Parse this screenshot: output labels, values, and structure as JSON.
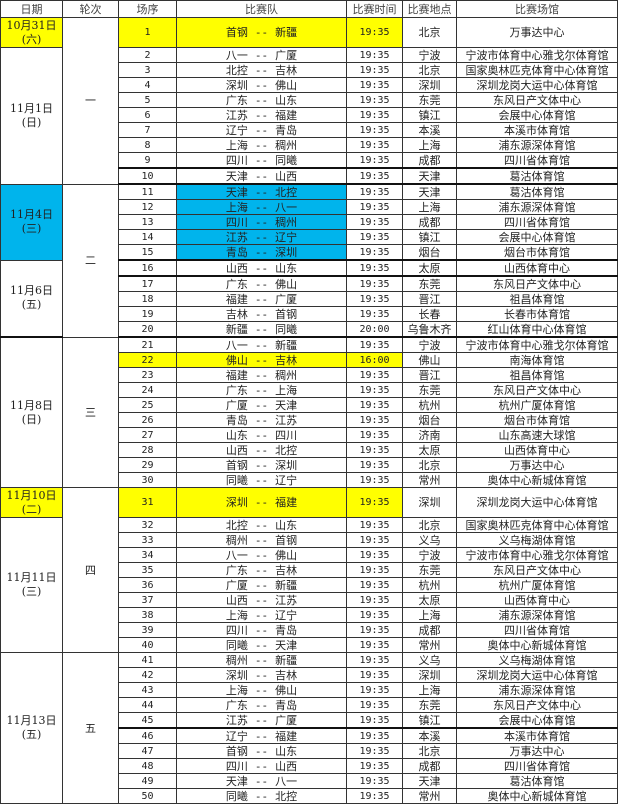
{
  "headers": [
    "日期",
    "轮次",
    "场序",
    "比赛队",
    "比赛时间",
    "比赛地点",
    "比赛场馆"
  ],
  "colors": {
    "yellow": "#ffff00",
    "blue": "#00b4ec"
  },
  "team_separator": "--",
  "date_groups": [
    {
      "date": "10月31日",
      "weekday": "(六)",
      "start": 1,
      "span": 1,
      "highlight": "yellow"
    },
    {
      "date": "11月1日",
      "weekday": "(日)",
      "start": 2,
      "span": 9,
      "highlight": ""
    },
    {
      "date": "11月4日",
      "weekday": "(三)",
      "start": 11,
      "span": 5,
      "highlight": "blue"
    },
    {
      "date": "11月6日",
      "weekday": "(五)",
      "start": 16,
      "span": 5,
      "highlight": ""
    },
    {
      "date": "11月8日",
      "weekday": "(日)",
      "start": 21,
      "span": 10,
      "highlight": ""
    },
    {
      "date": "11月10日",
      "weekday": "(二)",
      "start": 31,
      "span": 1,
      "highlight": "yellow"
    },
    {
      "date": "11月11日",
      "weekday": "(三)",
      "start": 32,
      "span": 9,
      "highlight": ""
    },
    {
      "date": "11月13日",
      "weekday": "(五)",
      "start": 41,
      "span": 10,
      "highlight": ""
    }
  ],
  "round_groups": [
    {
      "round": "一",
      "start": 1,
      "span": 10
    },
    {
      "round": "二",
      "start": 11,
      "span": 10
    },
    {
      "round": "三",
      "start": 21,
      "span": 10
    },
    {
      "round": "四",
      "start": 31,
      "span": 10
    },
    {
      "round": "五",
      "start": 41,
      "span": 10
    }
  ],
  "matches": [
    {
      "seq": "1",
      "home": "首钢",
      "away": "新疆",
      "time": "19:35",
      "city": "北京",
      "venue": "万事达中心",
      "highlight": "yellow"
    },
    {
      "seq": "2",
      "home": "八一",
      "away": "广厦",
      "time": "19:35",
      "city": "宁波",
      "venue": "宁波市体育中心雅戈尔体育馆"
    },
    {
      "seq": "3",
      "home": "北控",
      "away": "吉林",
      "time": "19:35",
      "city": "北京",
      "venue": "国家奥林匹克体育中心体育馆"
    },
    {
      "seq": "4",
      "home": "深圳",
      "away": "佛山",
      "time": "19:35",
      "city": "深圳",
      "venue": "深圳龙岗大运中心体育馆"
    },
    {
      "seq": "5",
      "home": "广东",
      "away": "山东",
      "time": "19:35",
      "city": "东莞",
      "venue": "东风日产文体中心"
    },
    {
      "seq": "6",
      "home": "江苏",
      "away": "福建",
      "time": "19:35",
      "city": "镇江",
      "venue": "会展中心体育馆"
    },
    {
      "seq": "7",
      "home": "辽宁",
      "away": "青岛",
      "time": "19:35",
      "city": "本溪",
      "venue": "本溪市体育馆"
    },
    {
      "seq": "8",
      "home": "上海",
      "away": "稠州",
      "time": "19:35",
      "city": "上海",
      "venue": "浦东源深体育馆"
    },
    {
      "seq": "9",
      "home": "四川",
      "away": "同曦",
      "time": "19:35",
      "city": "成都",
      "venue": "四川省体育馆"
    },
    {
      "seq": "10",
      "home": "天津",
      "away": "山西",
      "time": "19:35",
      "city": "天津",
      "venue": "葛沽体育馆"
    },
    {
      "seq": "11",
      "home": "天津",
      "away": "北控",
      "time": "19:35",
      "city": "天津",
      "venue": "葛沽体育馆",
      "highlight": "blue-teams"
    },
    {
      "seq": "12",
      "home": "上海",
      "away": "八一",
      "time": "19:35",
      "city": "上海",
      "venue": "浦东源深体育馆",
      "highlight": "blue-teams"
    },
    {
      "seq": "13",
      "home": "四川",
      "away": "稠州",
      "time": "19:35",
      "city": "成都",
      "venue": "四川省体育馆",
      "highlight": "blue-teams"
    },
    {
      "seq": "14",
      "home": "江苏",
      "away": "辽宁",
      "time": "19:35",
      "city": "镇江",
      "venue": "会展中心体育馆",
      "highlight": "blue-teams"
    },
    {
      "seq": "15",
      "home": "青岛",
      "away": "深圳",
      "time": "19:35",
      "city": "烟台",
      "venue": "烟台市体育馆",
      "highlight": "blue-teams"
    },
    {
      "seq": "16",
      "home": "山西",
      "away": "山东",
      "time": "19:35",
      "city": "太原",
      "venue": "山西体育中心"
    },
    {
      "seq": "17",
      "home": "广东",
      "away": "佛山",
      "time": "19:35",
      "city": "东莞",
      "venue": "东风日产文体中心"
    },
    {
      "seq": "18",
      "home": "福建",
      "away": "广厦",
      "time": "19:35",
      "city": "晋江",
      "venue": "祖昌体育馆"
    },
    {
      "seq": "19",
      "home": "吉林",
      "away": "首钢",
      "time": "19:35",
      "city": "长春",
      "venue": "长春市体育馆"
    },
    {
      "seq": "20",
      "home": "新疆",
      "away": "同曦",
      "time": "20:00",
      "city": "乌鲁木齐",
      "venue": "红山体育中心体育馆"
    },
    {
      "seq": "21",
      "home": "八一",
      "away": "新疆",
      "time": "19:35",
      "city": "宁波",
      "venue": "宁波市体育中心雅戈尔体育馆"
    },
    {
      "seq": "22",
      "home": "佛山",
      "away": "吉林",
      "time": "16:00",
      "city": "佛山",
      "venue": "南海体育馆",
      "highlight": "yellow"
    },
    {
      "seq": "23",
      "home": "福建",
      "away": "稠州",
      "time": "19:35",
      "city": "晋江",
      "venue": "祖昌体育馆"
    },
    {
      "seq": "24",
      "home": "广东",
      "away": "上海",
      "time": "19:35",
      "city": "东莞",
      "venue": "东风日产文体中心"
    },
    {
      "seq": "25",
      "home": "广厦",
      "away": "天津",
      "time": "19:35",
      "city": "杭州",
      "venue": "杭州广厦体育馆"
    },
    {
      "seq": "26",
      "home": "青岛",
      "away": "江苏",
      "time": "19:35",
      "city": "烟台",
      "venue": "烟台市体育馆"
    },
    {
      "seq": "27",
      "home": "山东",
      "away": "四川",
      "time": "19:35",
      "city": "济南",
      "venue": "山东高速大球馆"
    },
    {
      "seq": "28",
      "home": "山西",
      "away": "北控",
      "time": "19:35",
      "city": "太原",
      "venue": "山西体育中心"
    },
    {
      "seq": "29",
      "home": "首钢",
      "away": "深圳",
      "time": "19:35",
      "city": "北京",
      "venue": "万事达中心"
    },
    {
      "seq": "30",
      "home": "同曦",
      "away": "辽宁",
      "time": "19:35",
      "city": "常州",
      "venue": "奥体中心新城体育馆"
    },
    {
      "seq": "31",
      "home": "深圳",
      "away": "福建",
      "time": "19:35",
      "city": "深圳",
      "venue": "深圳龙岗大运中心体育馆",
      "highlight": "yellow"
    },
    {
      "seq": "32",
      "home": "北控",
      "away": "山东",
      "time": "19:35",
      "city": "北京",
      "venue": "国家奥林匹克体育中心体育馆"
    },
    {
      "seq": "33",
      "home": "稠州",
      "away": "首钢",
      "time": "19:35",
      "city": "义乌",
      "venue": "义乌梅湖体育馆"
    },
    {
      "seq": "34",
      "home": "八一",
      "away": "佛山",
      "time": "19:35",
      "city": "宁波",
      "venue": "宁波市体育中心雅戈尔体育馆"
    },
    {
      "seq": "35",
      "home": "广东",
      "away": "吉林",
      "time": "19:35",
      "city": "东莞",
      "venue": "东风日产文体中心"
    },
    {
      "seq": "36",
      "home": "广厦",
      "away": "新疆",
      "time": "19:35",
      "city": "杭州",
      "venue": "杭州广厦体育馆"
    },
    {
      "seq": "37",
      "home": "山西",
      "away": "江苏",
      "time": "19:35",
      "city": "太原",
      "venue": "山西体育中心"
    },
    {
      "seq": "38",
      "home": "上海",
      "away": "辽宁",
      "time": "19:35",
      "city": "上海",
      "venue": "浦东源深体育馆"
    },
    {
      "seq": "39",
      "home": "四川",
      "away": "青岛",
      "time": "19:35",
      "city": "成都",
      "venue": "四川省体育馆"
    },
    {
      "seq": "40",
      "home": "同曦",
      "away": "天津",
      "time": "19:35",
      "city": "常州",
      "venue": "奥体中心新城体育馆"
    },
    {
      "seq": "41",
      "home": "稠州",
      "away": "新疆",
      "time": "19:35",
      "city": "义乌",
      "venue": "义乌梅湖体育馆"
    },
    {
      "seq": "42",
      "home": "深圳",
      "away": "吉林",
      "time": "19:35",
      "city": "深圳",
      "venue": "深圳龙岗大运中心体育馆"
    },
    {
      "seq": "43",
      "home": "上海",
      "away": "佛山",
      "time": "19:35",
      "city": "上海",
      "venue": "浦东源深体育馆"
    },
    {
      "seq": "44",
      "home": "广东",
      "away": "青岛",
      "time": "19:35",
      "city": "东莞",
      "venue": "东风日产文体中心"
    },
    {
      "seq": "45",
      "home": "江苏",
      "away": "广厦",
      "time": "19:35",
      "city": "镇江",
      "venue": "会展中心体育馆"
    },
    {
      "seq": "46",
      "home": "辽宁",
      "away": "福建",
      "time": "19:35",
      "city": "本溪",
      "venue": "本溪市体育馆"
    },
    {
      "seq": "47",
      "home": "首钢",
      "away": "山东",
      "time": "19:35",
      "city": "北京",
      "venue": "万事达中心"
    },
    {
      "seq": "48",
      "home": "四川",
      "away": "山西",
      "time": "19:35",
      "city": "成都",
      "venue": "四川省体育馆"
    },
    {
      "seq": "49",
      "home": "天津",
      "away": "八一",
      "time": "19:35",
      "city": "天津",
      "venue": "葛沽体育馆"
    },
    {
      "seq": "50",
      "home": "同曦",
      "away": "北控",
      "time": "19:35",
      "city": "常州",
      "venue": "奥体中心新城体育馆"
    }
  ]
}
